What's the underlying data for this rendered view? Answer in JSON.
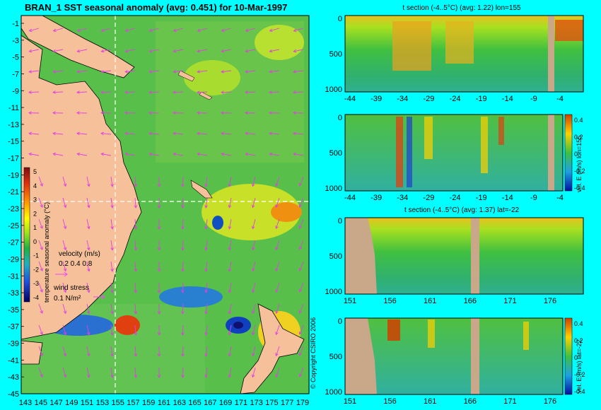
{
  "map": {
    "title": "BRAN_1 SST seasonal anomaly (avg: 0.451) for 10-Mar-1997",
    "lat_ticks": [
      "-1",
      "-3",
      "-5",
      "-7",
      "-9",
      "-11",
      "-13",
      "-15",
      "-17",
      "-19",
      "-21",
      "-23",
      "-25",
      "-27",
      "-29",
      "-31",
      "-33",
      "-35",
      "-37",
      "-39",
      "-41",
      "-43",
      "-45"
    ],
    "lon_ticks": [
      "143",
      "145",
      "147",
      "149",
      "151",
      "153",
      "155",
      "157",
      "159",
      "161",
      "163",
      "165",
      "167",
      "169",
      "171",
      "173",
      "175",
      "177",
      "179"
    ],
    "colorbar": {
      "ticks": [
        "5",
        "4",
        "3",
        "2",
        "1",
        "0",
        "-1",
        "-2",
        "-3",
        "-4"
      ],
      "label": "temperature seasonal anomaly (°C)"
    },
    "velocity_legend": {
      "title": "velocity (m/s)",
      "values": "0.2 0.4 0.8"
    },
    "wind_legend": {
      "title": "wind stress",
      "value": "0.1 N/m²"
    },
    "copyright": "© Copyright CSIRO 2006"
  },
  "sections": [
    {
      "id": "t-section-lon",
      "title": "t section (-4..5°C) (avg: 1.22) lon=155",
      "x_ticks": [
        "-44",
        "-39",
        "-34",
        "-29",
        "-24",
        "-19",
        "-14",
        "-9",
        "-4"
      ],
      "y_ticks": [
        "0",
        "500",
        "1000"
      ]
    },
    {
      "id": "vel-section-lon",
      "title": "",
      "x_ticks": [
        "-44",
        "-39",
        "-34",
        "-29",
        "-24",
        "-19",
        "-14",
        "-9",
        "-4"
      ],
      "y_ticks": [
        "0",
        "500",
        "1000"
      ],
      "colorbar_label": "vel. E (m/s) lon=155",
      "colorbar_ticks": [
        "0.4",
        "0.2",
        "0",
        "-0.2",
        "-0.4"
      ]
    },
    {
      "id": "t-section-lat",
      "title": "t section (-4..5°C) (avg: 1.37) lat=-22",
      "x_ticks": [
        "151",
        "156",
        "161",
        "166",
        "171",
        "176"
      ],
      "y_ticks": [
        "0",
        "500",
        "1000"
      ]
    },
    {
      "id": "vel-section-lat",
      "title": "",
      "x_ticks": [
        "151",
        "156",
        "161",
        "166",
        "171",
        "176"
      ],
      "y_ticks": [
        "0",
        "500",
        "1000"
      ],
      "colorbar_label": "vel. E (m/s) lat=-22",
      "colorbar_ticks": [
        "0.4",
        "0.2",
        "0",
        "-0.2",
        "-0.4"
      ]
    }
  ],
  "chart_data": [
    {
      "type": "heatmap",
      "title": "BRAN_1 SST seasonal anomaly (avg: 0.451) for 10-Mar-1997",
      "xlim": [
        142,
        180
      ],
      "ylim": [
        -45,
        0
      ],
      "colorbar_range": [
        -4,
        5
      ],
      "crosshair": {
        "lon": 155,
        "lat": -22
      }
    },
    {
      "type": "heatmap",
      "title": "t section (-4..5°C) (avg: 1.22) lon=155",
      "xlim": [
        -45,
        0
      ],
      "ylim": [
        1100,
        0
      ]
    },
    {
      "type": "heatmap",
      "title": "",
      "xlim": [
        -45,
        0
      ],
      "ylim": [
        1100,
        0
      ],
      "colorbar_range": [
        -0.4,
        0.4
      ]
    },
    {
      "type": "heatmap",
      "title": "t section (-4..5°C) (avg: 1.37) lat=-22",
      "xlim": [
        150,
        180
      ],
      "ylim": [
        1100,
        0
      ]
    },
    {
      "type": "heatmap",
      "title": "",
      "xlim": [
        150,
        180
      ],
      "ylim": [
        1100,
        0
      ],
      "colorbar_range": [
        -0.4,
        0.4
      ]
    }
  ]
}
